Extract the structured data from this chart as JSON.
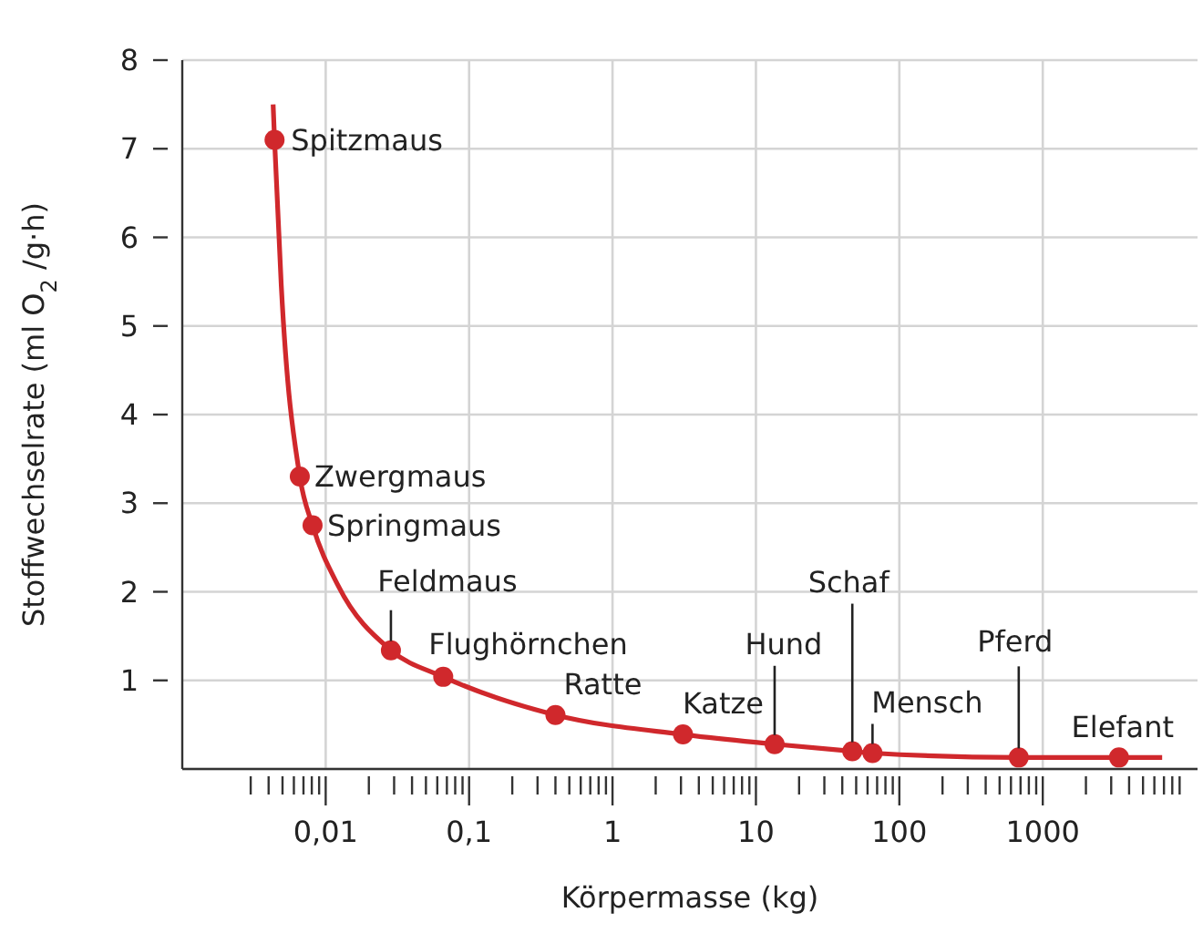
{
  "chart_data": {
    "type": "scatter",
    "xlabel": "Körpermasse (kg)",
    "ylabel": "Stoffwechselrate (ml O$_{2}$ /g·h)",
    "log": "x",
    "grid": true,
    "marker": "circle",
    "xlim": [
      0.001,
      12000
    ],
    "ylim": [
      0,
      8
    ],
    "xticks": [
      {
        "value": 0.003,
        "label": null
      },
      {
        "value": 0.004,
        "label": null
      },
      {
        "value": 0.005,
        "label": null
      },
      {
        "value": 0.006,
        "label": null
      },
      {
        "value": 0.007,
        "label": null
      },
      {
        "value": 0.008,
        "label": null
      },
      {
        "value": 0.009,
        "label": null
      },
      {
        "value": 0.01,
        "label": "0,01"
      },
      {
        "value": 0.02,
        "label": null
      },
      {
        "value": 0.03,
        "label": null
      },
      {
        "value": 0.04,
        "label": null
      },
      {
        "value": 0.05,
        "label": null
      },
      {
        "value": 0.06,
        "label": null
      },
      {
        "value": 0.07,
        "label": null
      },
      {
        "value": 0.08,
        "label": null
      },
      {
        "value": 0.09,
        "label": null
      },
      {
        "value": 0.1,
        "label": "0,1"
      },
      {
        "value": 0.2,
        "label": null
      },
      {
        "value": 0.3,
        "label": null
      },
      {
        "value": 0.4,
        "label": null
      },
      {
        "value": 0.5,
        "label": null
      },
      {
        "value": 0.6,
        "label": null
      },
      {
        "value": 0.7,
        "label": null
      },
      {
        "value": 0.8,
        "label": null
      },
      {
        "value": 0.9,
        "label": null
      },
      1,
      {
        "value": 2,
        "label": null
      },
      {
        "value": 3,
        "label": null
      },
      {
        "value": 4,
        "label": null
      },
      {
        "value": 5,
        "label": null
      },
      {
        "value": 6,
        "label": null
      },
      {
        "value": 7,
        "label": null
      },
      {
        "value": 8,
        "label": null
      },
      {
        "value": 9,
        "label": null
      },
      10,
      {
        "value": 20,
        "label": null
      },
      {
        "value": 30,
        "label": null
      },
      {
        "value": 40,
        "label": null
      },
      {
        "value": 50,
        "label": null
      },
      {
        "value": 60,
        "label": null
      },
      {
        "value": 70,
        "label": null
      },
      {
        "value": 80,
        "label": null
      },
      {
        "value": 90,
        "label": null
      },
      100,
      {
        "value": 200,
        "label": null
      },
      {
        "value": 300,
        "label": null
      },
      {
        "value": 400,
        "label": null
      },
      {
        "value": 500,
        "label": null
      },
      {
        "value": 600,
        "label": null
      },
      {
        "value": 700,
        "label": null
      },
      {
        "value": 800,
        "label": null
      },
      {
        "value": 900,
        "label": null
      },
      1000,
      {
        "value": 2000,
        "label": null
      },
      {
        "value": 3000,
        "label": null
      },
      {
        "value": 4000,
        "label": null
      },
      {
        "value": 5000,
        "label": null
      },
      {
        "value": 6000,
        "label": null
      },
      {
        "value": 7000,
        "label": null
      },
      {
        "value": 8000,
        "label": null
      },
      {
        "value": 9000,
        "label": null
      }
    ],
    "yticks": [
      1,
      2,
      3,
      4,
      5,
      6,
      7,
      8
    ],
    "series": [
      {
        "type": "line",
        "color": "#d0282c",
        "marker": "none",
        "x": [
          0.0043,
          0.0044,
          0.0049,
          0.0066,
          0.0081,
          0.0122,
          0.0285,
          0.066,
          0.4,
          3.1,
          13.5,
          47,
          65,
          680,
          3400,
          6800
        ],
        "values": [
          7.5,
          7.1,
          5.46,
          3.3,
          2.75,
          2.07,
          1.34,
          1.04,
          0.61,
          0.39,
          0.28,
          0.2,
          0.18,
          0.13,
          0.13,
          0.13
        ]
      },
      {
        "color": "#d0282c",
        "x": [
          0.0044,
          0.0066,
          0.0081,
          0.0285,
          0.066,
          0.4,
          3.1,
          13.5,
          47,
          65,
          680,
          3400
        ],
        "values": [
          7.1,
          3.3,
          2.75,
          1.34,
          1.04,
          0.61,
          0.39,
          0.28,
          0.2,
          0.18,
          0.13,
          0.13
        ]
      }
    ],
    "annotations": [
      {
        "text": "Spitzmaus",
        "x": 0.0044,
        "y": 7.1
      },
      {
        "text": "Zwergmaus",
        "x": 0.0066,
        "y": 3.3
      },
      {
        "text": "Springmaus",
        "x": 0.0081,
        "y": 2.75
      },
      {
        "text": "Feldmaus",
        "x": 0.0285,
        "y": 1.34
      },
      {
        "text": "Flughörnchen",
        "x": 0.066,
        "y": 1.04
      },
      {
        "text": "Ratte",
        "x": 0.4,
        "y": 0.61
      },
      {
        "text": "Katze",
        "x": 3.1,
        "y": 0.39
      },
      {
        "text": "Hund",
        "x": 13.5,
        "y": 0.28
      },
      {
        "text": "Schaf",
        "x": 47,
        "y": 0.2
      },
      {
        "text": "Mensch",
        "x": 65,
        "y": 0.18
      },
      {
        "text": "Pferd",
        "x": 680,
        "y": 0.13
      },
      {
        "text": "Elefant",
        "x": 3400,
        "y": 0.13
      }
    ]
  }
}
